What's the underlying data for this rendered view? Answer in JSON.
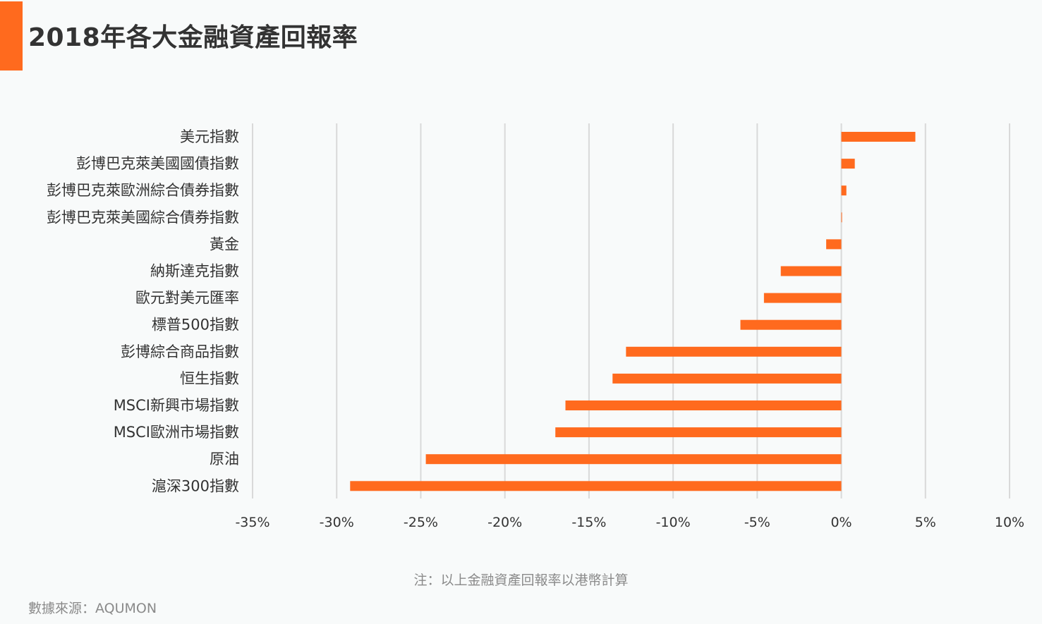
{
  "title": "2018年各大金融資產回報率",
  "note": "注：以上金融資產回報率以港幣計算",
  "source": "數據來源：AQUMON",
  "colors": {
    "accent": "#ff6a1e",
    "bar": "#ff6a1e",
    "grid": "#d9d9d9",
    "text": "#333333"
  },
  "chart_data": {
    "type": "bar",
    "orientation": "horizontal",
    "categories": [
      "美元指數",
      "彭博巴克萊美國國債指數",
      "彭博巴克萊歐洲綜合債券指數",
      "彭博巴克萊美國綜合債券指數",
      "黃金",
      "納斯達克指數",
      "歐元對美元匯率",
      "標普500指數",
      "彭博綜合商品指數",
      "恒生指數",
      "MSCI新興市場指數",
      "MSCI歐洲市場指數",
      "原油",
      "滬深300指數"
    ],
    "values": [
      4.4,
      0.8,
      0.3,
      0.0,
      -0.9,
      -3.6,
      -4.6,
      -6.0,
      -12.8,
      -13.6,
      -16.4,
      -17.0,
      -24.7,
      -29.2
    ],
    "xlim": [
      -35,
      10
    ],
    "xticks": [
      -35,
      -30,
      -25,
      -20,
      -15,
      -10,
      -5,
      0,
      5,
      10
    ],
    "xtick_labels": [
      "-35%",
      "-30%",
      "-25%",
      "-20%",
      "-15%",
      "-10%",
      "-5%",
      "0%",
      "5%",
      "10%"
    ],
    "grid": true
  }
}
